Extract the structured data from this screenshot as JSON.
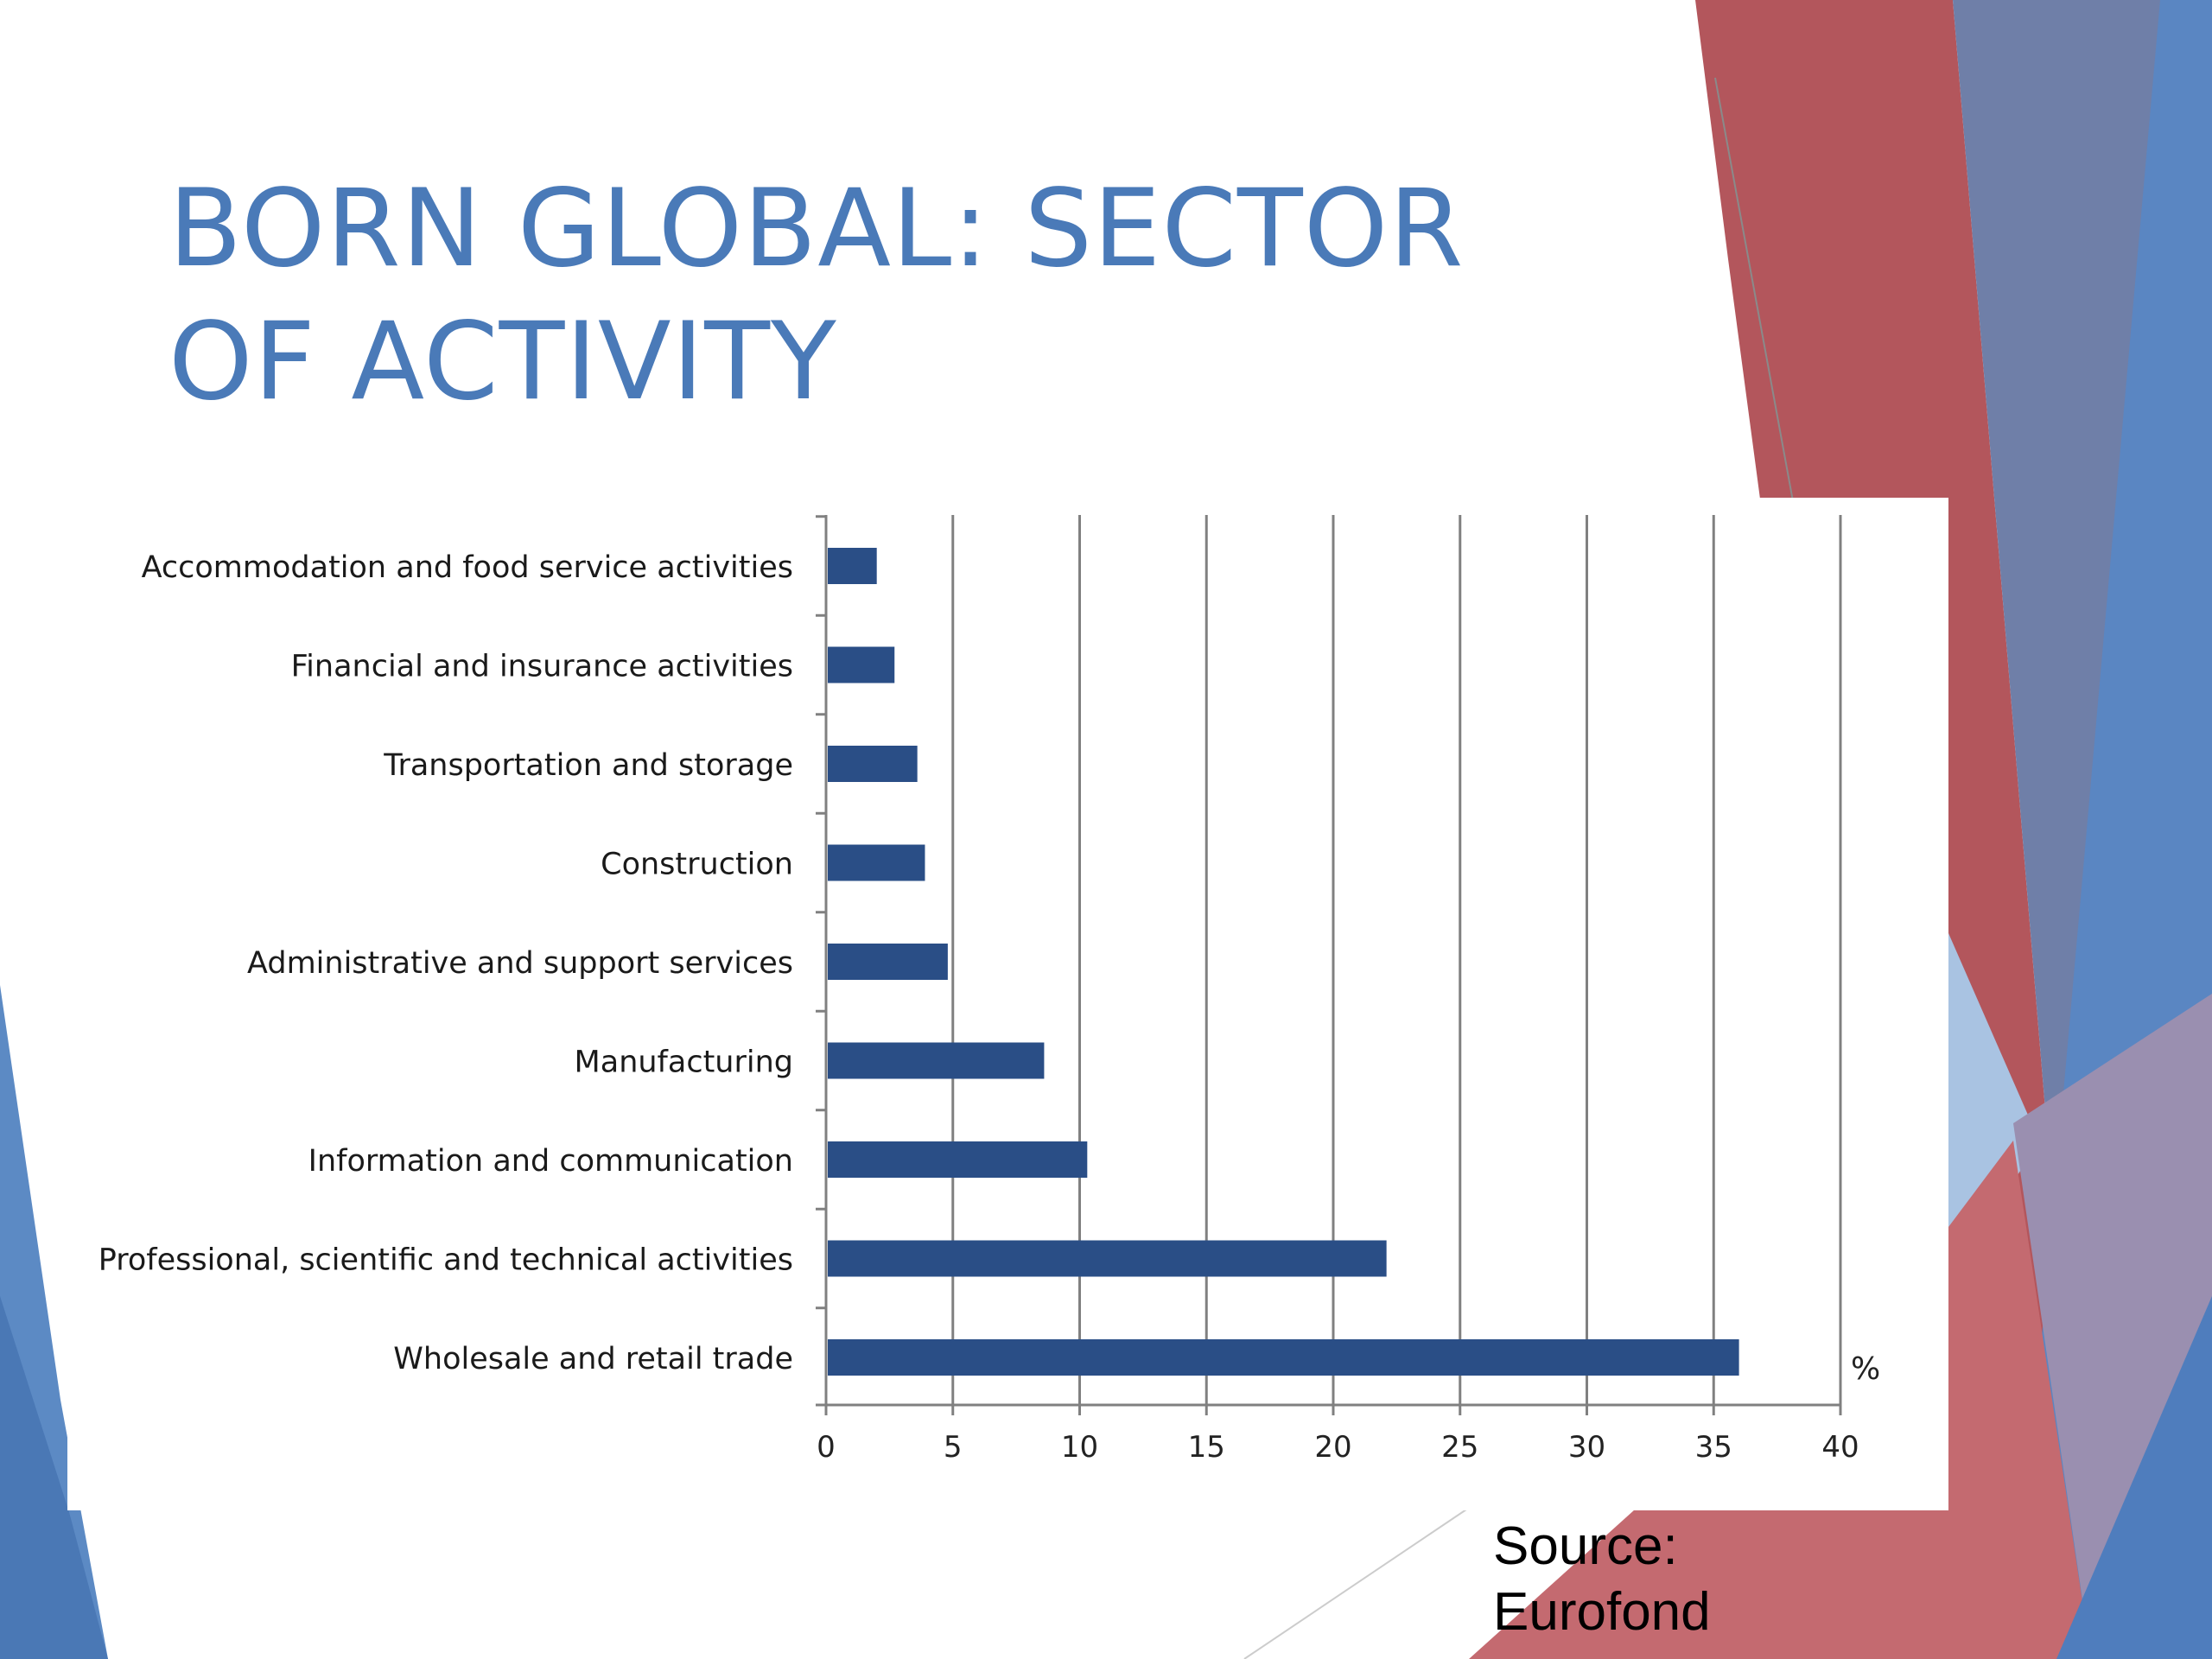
{
  "slide": {
    "title": "BORN GLOBAL: SECTOR OF ACTIVITY",
    "source_note": "Source: Eurofond"
  },
  "theme": {
    "title_color": "#4a7ab8",
    "bar_color": "#2a4e86",
    "red_accent": "#b3565c",
    "blue_accent": "#5a82bd"
  },
  "chart_data": {
    "type": "bar",
    "orientation": "horizontal",
    "categories": [
      "Accommodation and food service activities",
      "Financial and insurance activities",
      "Transportation and storage",
      "Construction",
      "Administrative and support services",
      "Manufacturing",
      "Information and communication",
      "Professional, scientific and technical activities",
      "Wholesale and retail trade"
    ],
    "values": [
      2.0,
      2.7,
      3.6,
      3.9,
      4.8,
      8.6,
      10.3,
      22.1,
      36.0
    ],
    "xlim": [
      0,
      40
    ],
    "xticks": [
      0,
      5,
      10,
      15,
      20,
      25,
      30,
      35,
      40
    ],
    "unit_label": "%",
    "grid": "vertical"
  }
}
